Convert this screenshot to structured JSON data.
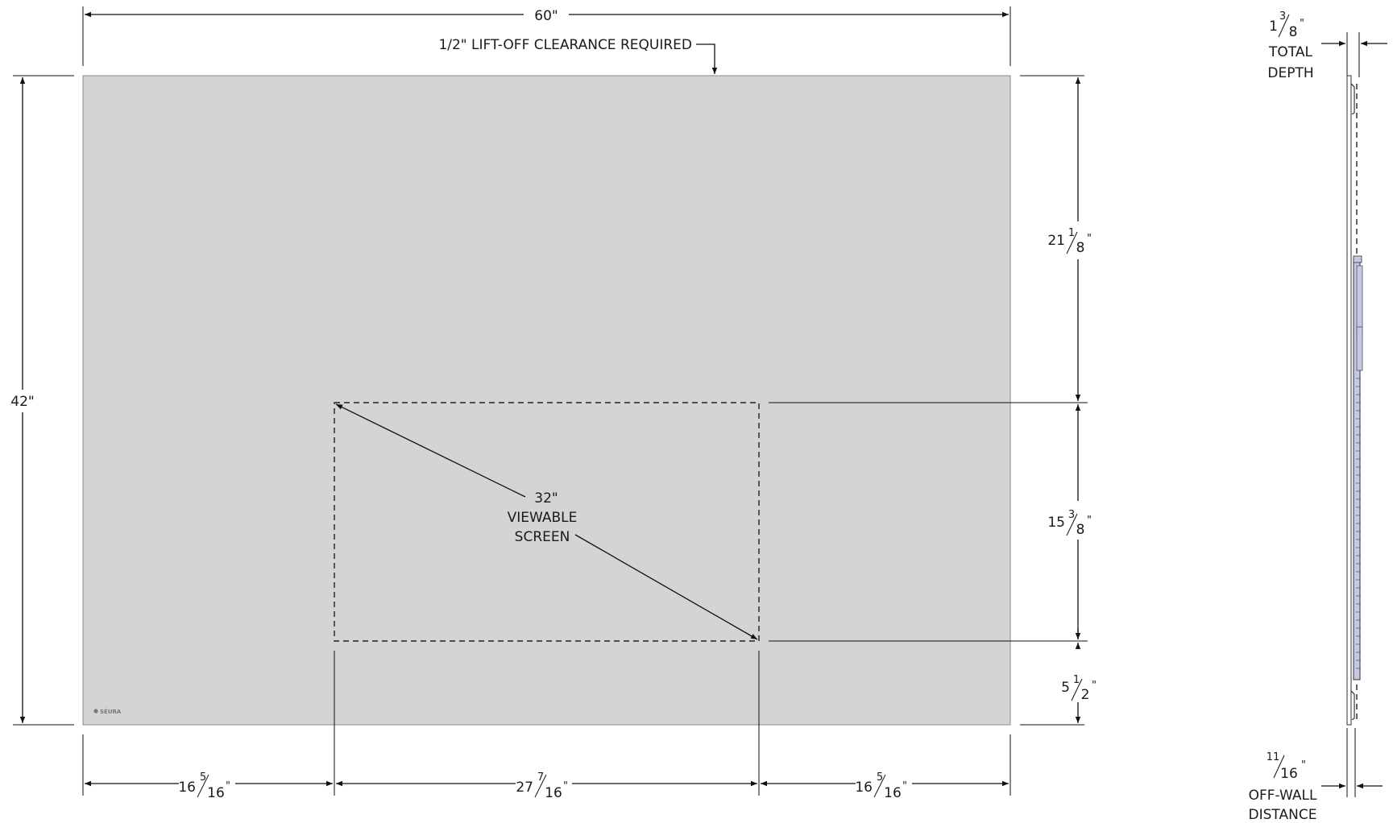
{
  "front_view": {
    "width": {
      "whole": "60",
      "unit": "\""
    },
    "height": {
      "whole": "42",
      "unit": "\""
    },
    "clearance_note": "1/2\" LIFT-OFF CLEARANCE REQUIRED",
    "screen_top_offset": {
      "whole": "21",
      "num": "1",
      "den": "8",
      "unit": "\""
    },
    "screen_height": {
      "whole": "15",
      "num": "3",
      "den": "8",
      "unit": "\""
    },
    "screen_bottom_offset": {
      "whole": "5",
      "num": "1",
      "den": "2",
      "unit": "\""
    },
    "left_offset": {
      "whole": "16",
      "num": "5",
      "den": "16",
      "unit": "\""
    },
    "screen_width": {
      "whole": "27",
      "num": "7",
      "den": "16",
      "unit": "\""
    },
    "right_offset": {
      "whole": "16",
      "num": "5",
      "den": "16",
      "unit": "\""
    },
    "screen_diagonal": {
      "value": "32\"",
      "line1": "VIEWABLE",
      "line2": "SCREEN"
    },
    "brand_logo": "SÉURA"
  },
  "side_view": {
    "total_depth": {
      "whole": "1",
      "num": "3",
      "den": "8",
      "unit": "\"",
      "line1": "TOTAL",
      "line2": "DEPTH"
    },
    "off_wall": {
      "num": "11",
      "den": "16",
      "unit": "\"",
      "line1": "OFF-WALL",
      "line2": "DISTANCE"
    }
  },
  "colors": {
    "panel": "#d4d4d4",
    "side_panel": "#c5c9e6",
    "line": "#111111"
  }
}
